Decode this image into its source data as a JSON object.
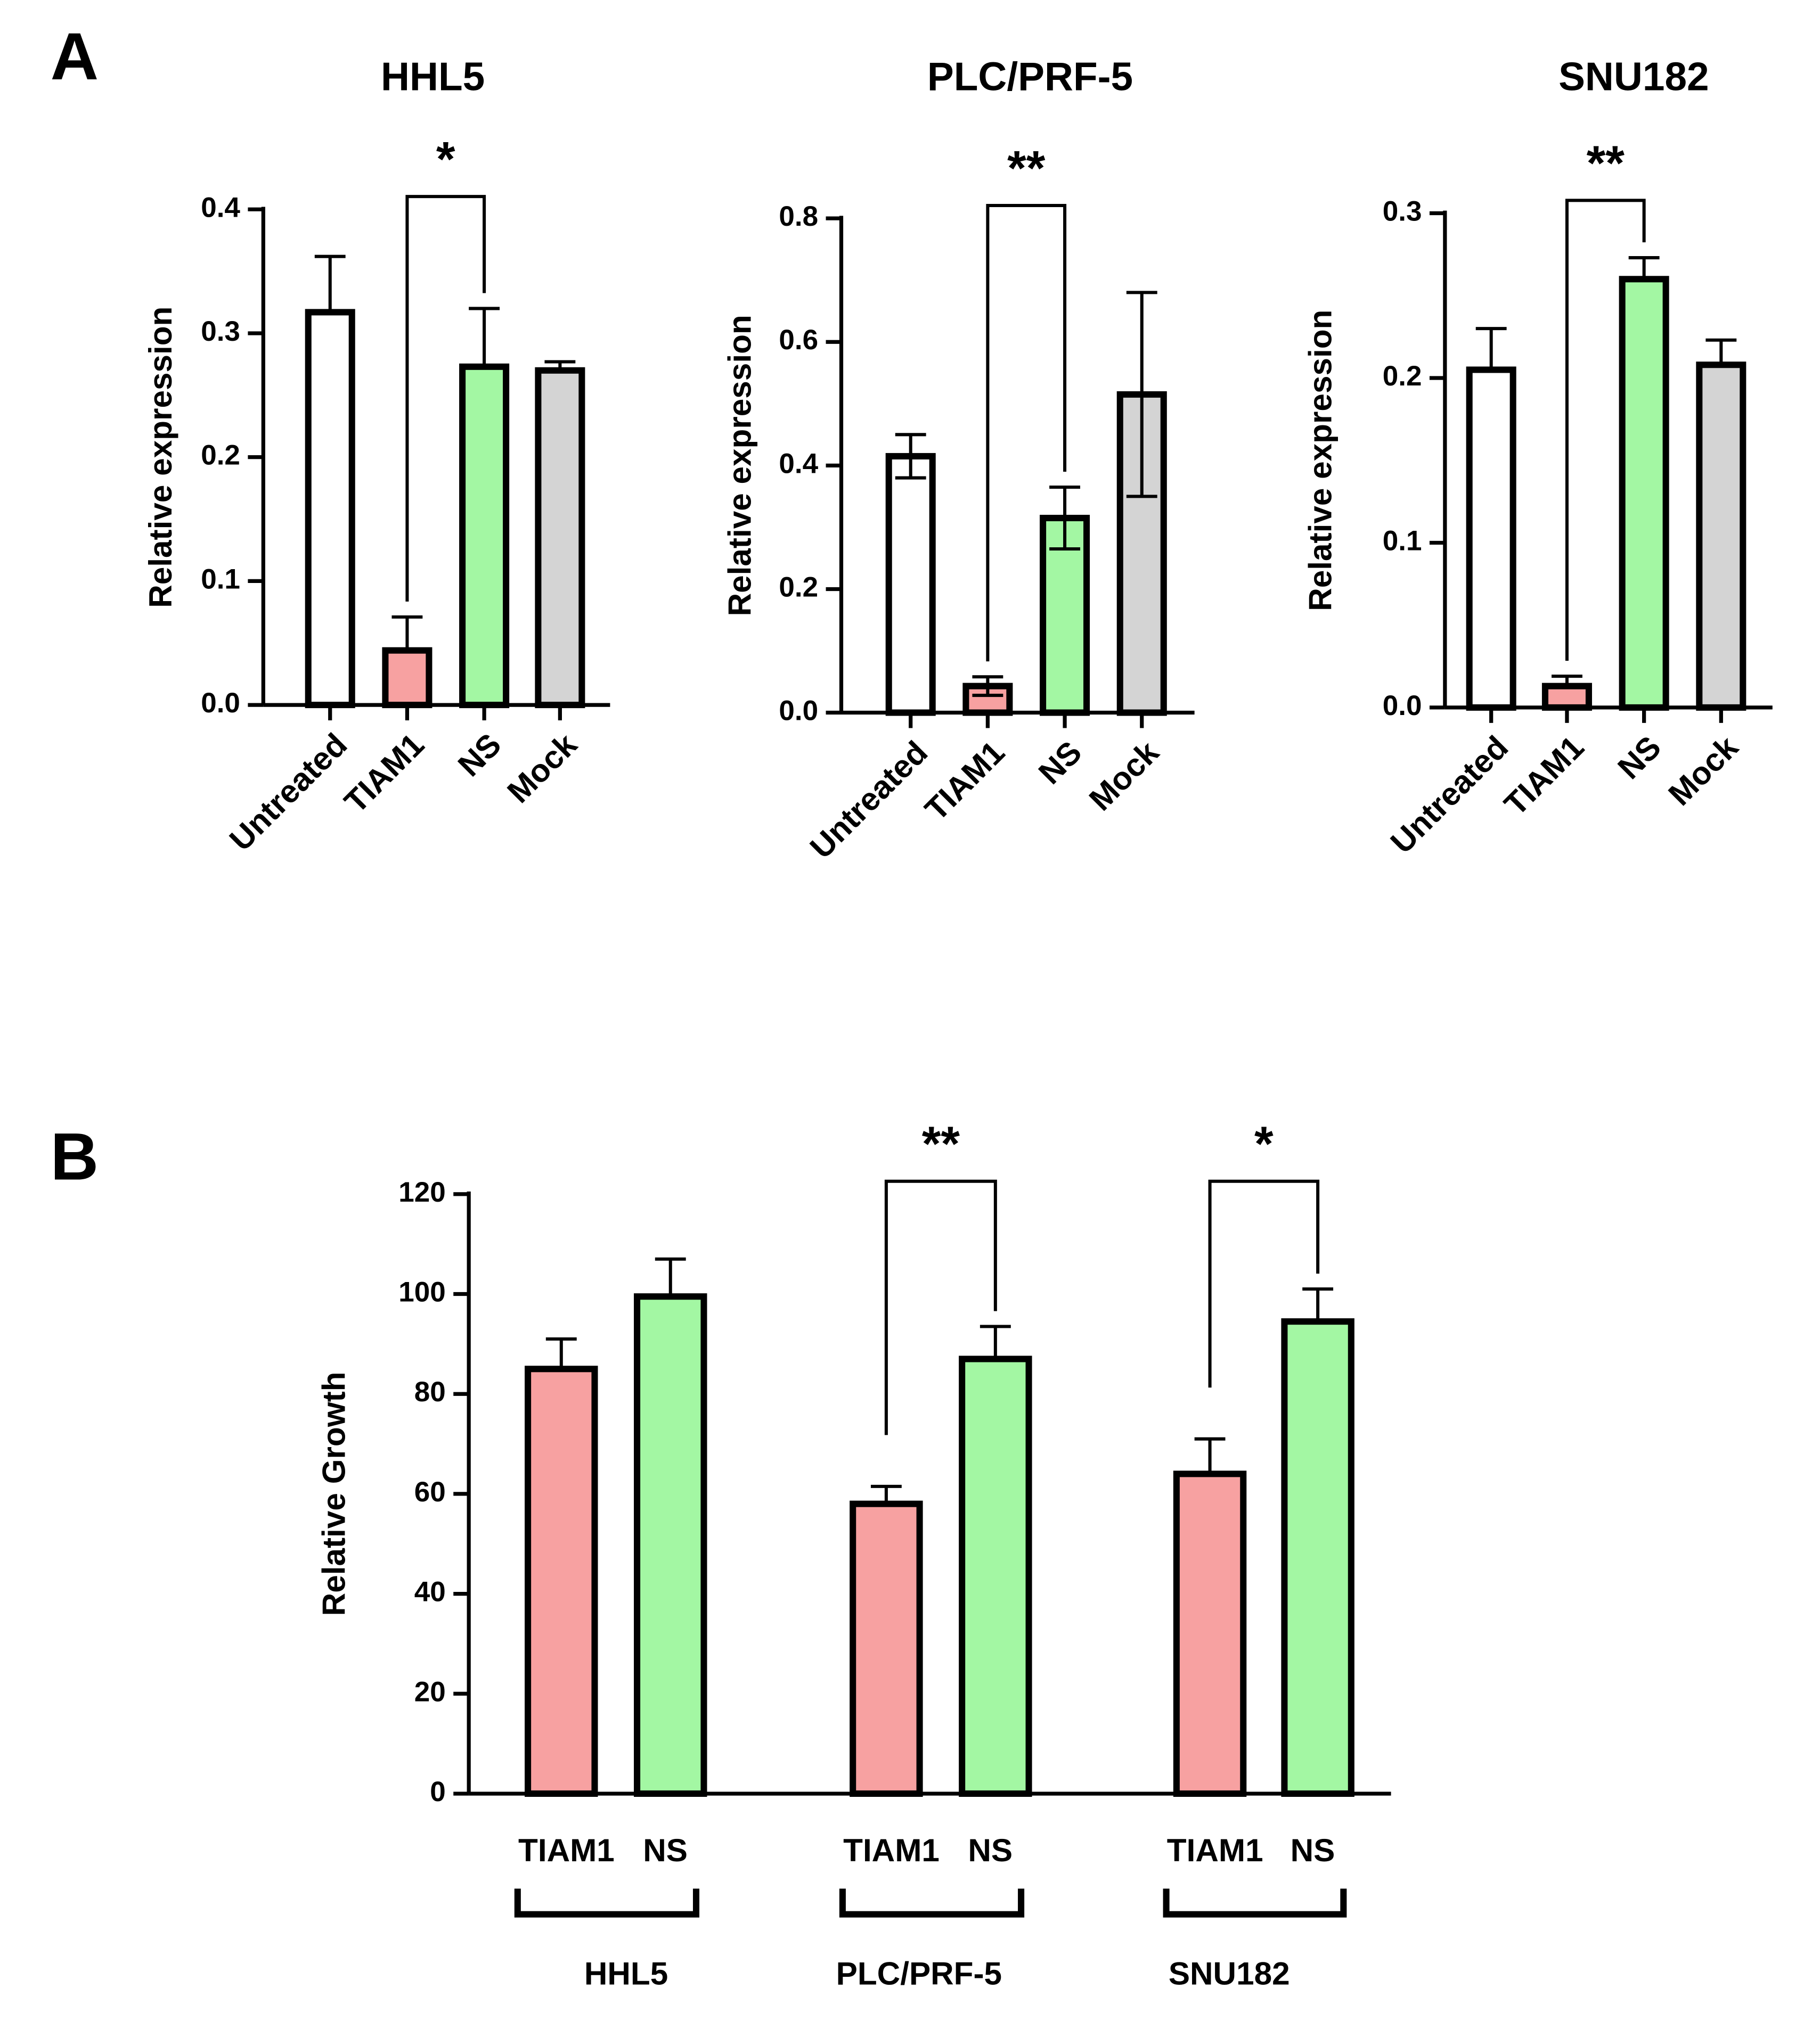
{
  "chart_data": [
    {
      "type": "bar",
      "panel": "A",
      "title": "HHL5",
      "ylabel": "Relative expression",
      "categories": [
        "Untreated",
        "TIAM1",
        "NS",
        "Mock"
      ],
      "values": [
        0.317,
        0.044,
        0.273,
        0.27
      ],
      "errors": [
        0.045,
        0.027,
        0.047,
        0.007
      ],
      "error_bars": "up",
      "colors": [
        "#ffffff",
        "#f7a1a1",
        "#a3f7a3",
        "#d4d4d4"
      ],
      "ylim": [
        0,
        0.4
      ],
      "yticks": [
        {
          "value": 0,
          "label": "0.0"
        },
        0.1,
        0.2,
        0.3,
        0.4
      ],
      "annotations": [
        {
          "text": "*",
          "from": 1,
          "to": 2
        }
      ]
    },
    {
      "type": "bar",
      "title": "PLC/PRF-5",
      "ylabel": "Relative expression",
      "categories": [
        "Untreated",
        "TIAM1",
        "NS",
        "Mock"
      ],
      "values": [
        0.415,
        0.043,
        0.315,
        0.515
      ],
      "errors": [
        0.035,
        0.015,
        0.05,
        0.165
      ],
      "error_bars": "both",
      "colors": [
        "#ffffff",
        "#f7a1a1",
        "#a3f7a3",
        "#d4d4d4"
      ],
      "ylim": [
        0,
        0.8
      ],
      "yticks": [
        {
          "value": 0,
          "label": "0.0"
        },
        0.2,
        0.4,
        0.6,
        0.8
      ],
      "annotations": [
        {
          "text": "**",
          "from": 1,
          "to": 2
        }
      ]
    },
    {
      "type": "bar",
      "title": "SNU182",
      "ylabel": "Relative expression",
      "categories": [
        "Untreated",
        "TIAM1",
        "NS",
        "Mock"
      ],
      "values": [
        0.205,
        0.013,
        0.26,
        0.208
      ],
      "errors": [
        0.025,
        0.006,
        0.013,
        0.015
      ],
      "error_bars": "up",
      "colors": [
        "#ffffff",
        "#f7a1a1",
        "#a3f7a3",
        "#d4d4d4"
      ],
      "ylim": [
        0,
        0.3
      ],
      "yticks": [
        {
          "value": 0,
          "label": "0.0"
        },
        0.1,
        0.2,
        0.3
      ],
      "annotations": [
        {
          "text": "**",
          "from": 1,
          "to": 2
        }
      ]
    },
    {
      "type": "bar",
      "panel": "B",
      "ylabel": "Relative Growth",
      "categories": [
        "HHL5",
        "PLC/PRF-5",
        "SNU182"
      ],
      "series": [
        {
          "name": "TIAM1",
          "color": "#f7a1a1",
          "values": [
            85,
            58,
            64
          ],
          "errors": [
            6,
            3.5,
            7
          ]
        },
        {
          "name": "NS",
          "color": "#a3f7a3",
          "values": [
            99.5,
            87,
            94.5
          ],
          "errors": [
            7.5,
            6.5,
            6.5
          ]
        }
      ],
      "error_bars": "up",
      "ylim": [
        0,
        120
      ],
      "yticks": [
        0,
        20,
        40,
        60,
        80,
        100,
        120
      ],
      "annotations": [
        {
          "text": "**",
          "group": 1
        },
        {
          "text": "*",
          "group": 2
        }
      ]
    }
  ]
}
